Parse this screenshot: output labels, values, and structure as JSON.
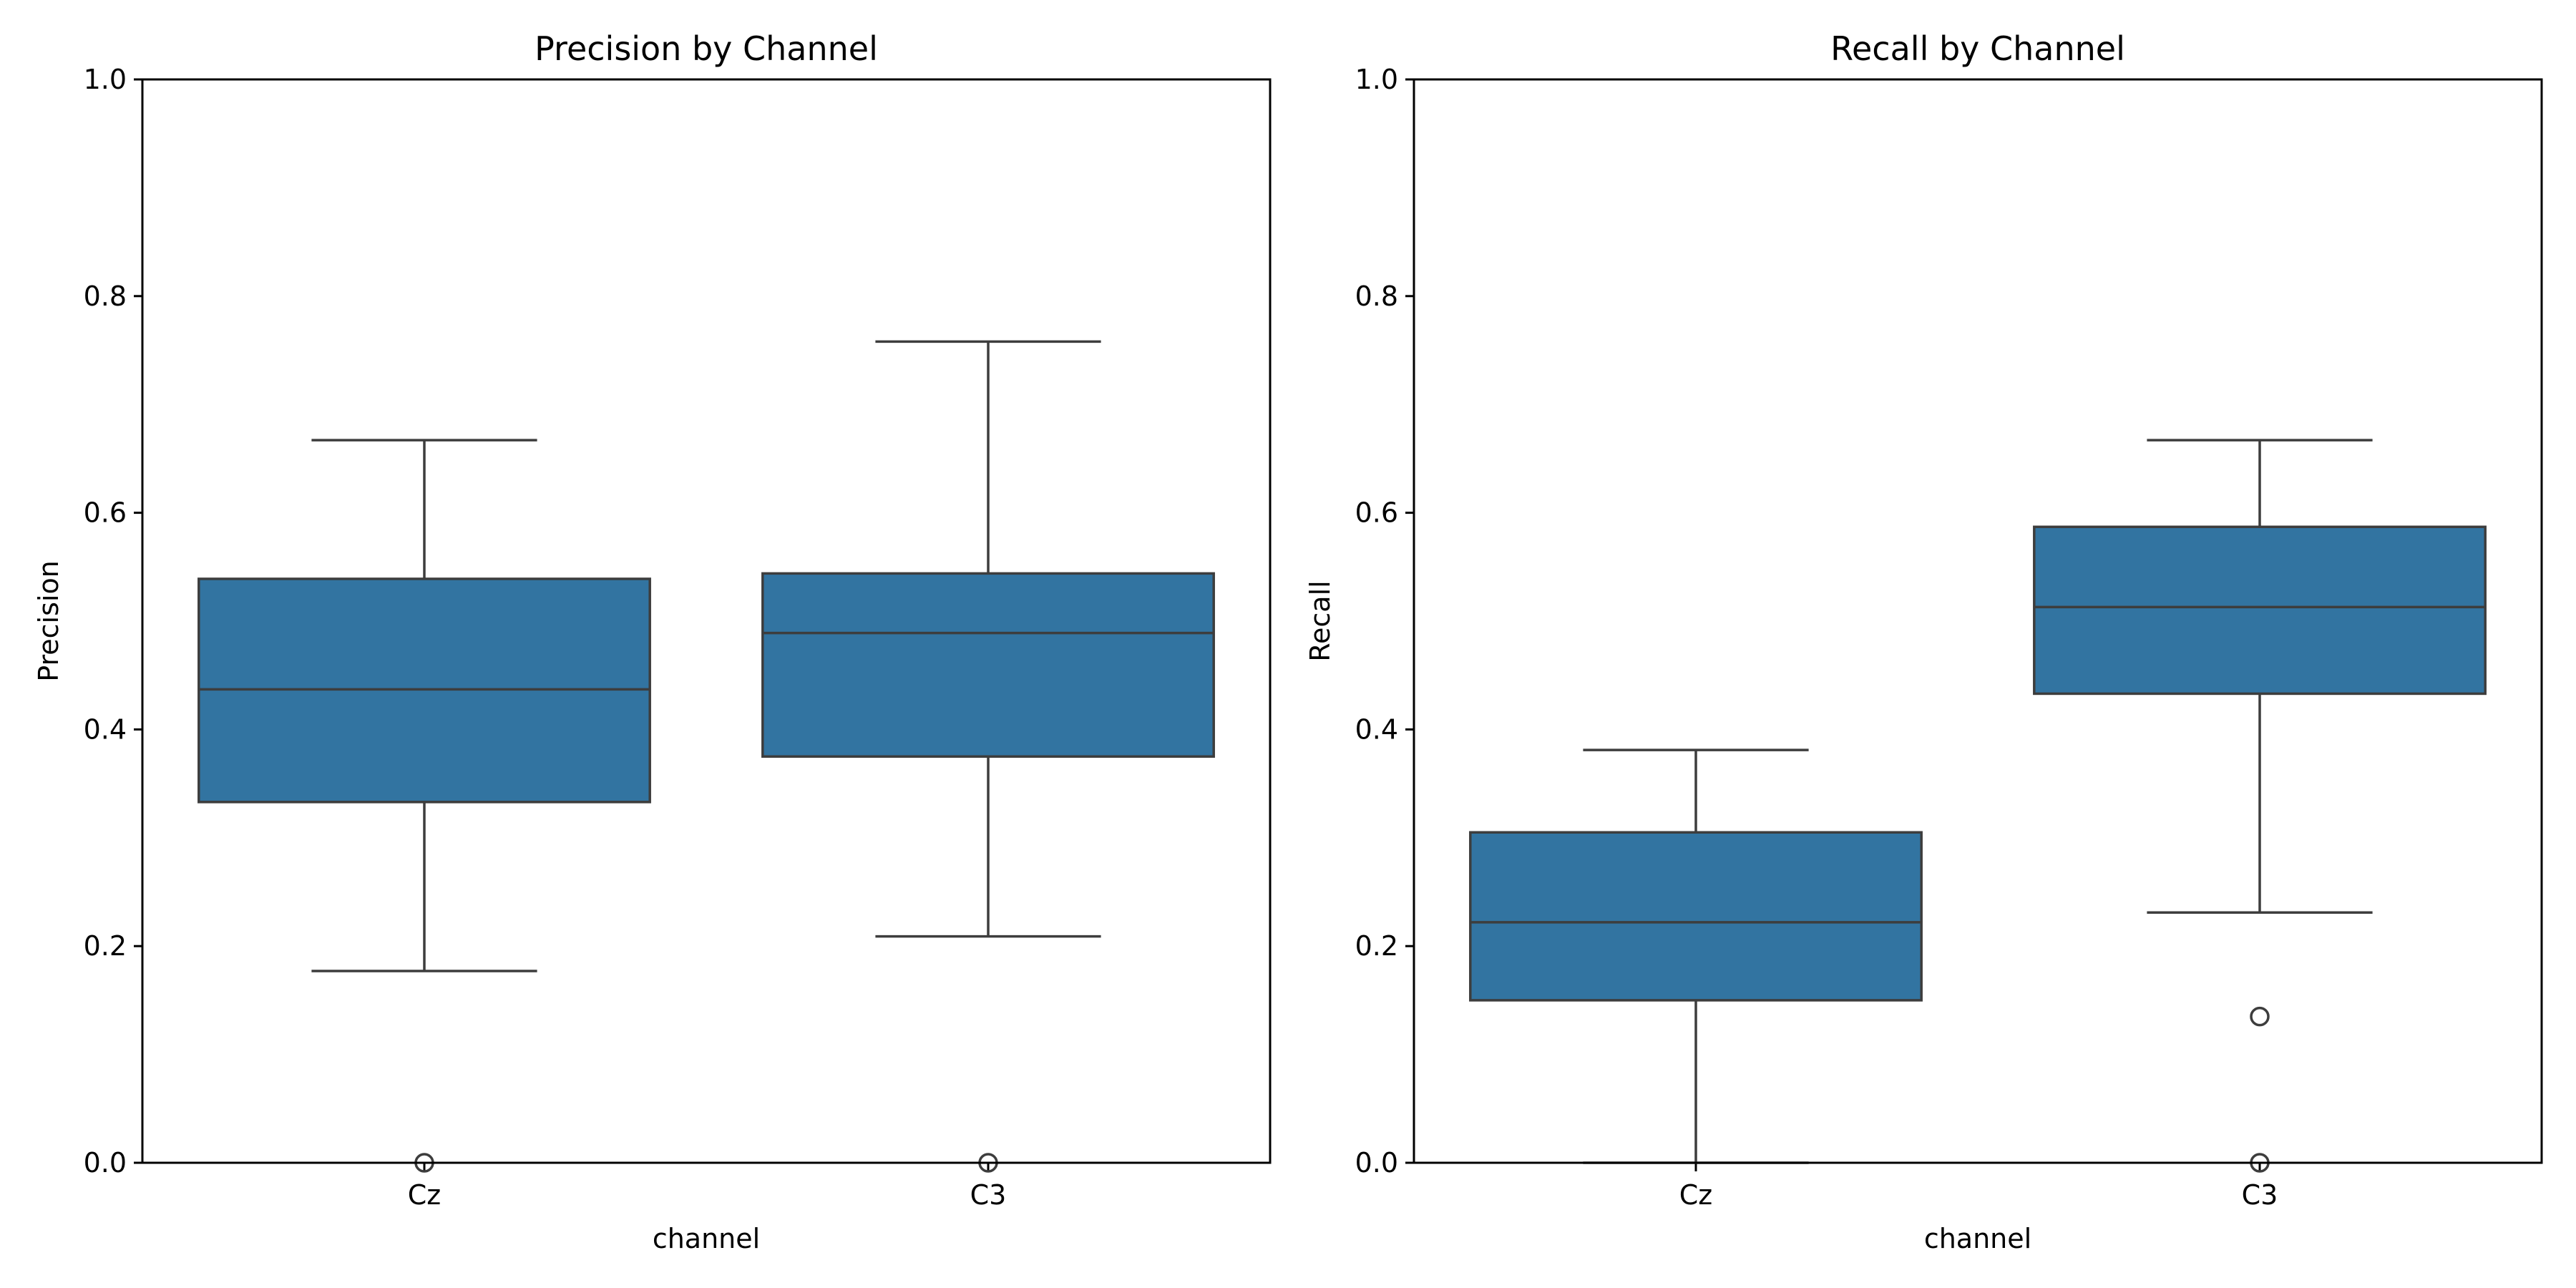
{
  "chart_data": [
    {
      "type": "box",
      "title": "Precision by Channel",
      "xlabel": "channel",
      "ylabel": "Precision",
      "ylim": [
        0,
        1
      ],
      "yticks": [
        "0.0",
        "0.2",
        "0.4",
        "0.6",
        "0.8",
        "1.0"
      ],
      "categories": [
        "Cz",
        "C3"
      ],
      "color": "#3274a1",
      "edge_color": "#3d3d3d",
      "grid": false,
      "boxes": [
        {
          "category": "Cz",
          "whisker_low": 0.177,
          "q1": 0.333,
          "median": 0.437,
          "q3": 0.539,
          "whisker_high": 0.667,
          "outliers": [
            0.0
          ]
        },
        {
          "category": "C3",
          "whisker_low": 0.209,
          "q1": 0.375,
          "median": 0.489,
          "q3": 0.544,
          "whisker_high": 0.758,
          "outliers": [
            0.0
          ]
        }
      ]
    },
    {
      "type": "box",
      "title": "Recall by Channel",
      "xlabel": "channel",
      "ylabel": "Recall",
      "ylim": [
        0,
        1
      ],
      "yticks": [
        "0.0",
        "0.2",
        "0.4",
        "0.6",
        "0.8",
        "1.0"
      ],
      "categories": [
        "Cz",
        "C3"
      ],
      "color": "#3274a1",
      "edge_color": "#3d3d3d",
      "grid": false,
      "boxes": [
        {
          "category": "Cz",
          "whisker_low": 0.0,
          "q1": 0.15,
          "median": 0.222,
          "q3": 0.305,
          "whisker_high": 0.381,
          "outliers": []
        },
        {
          "category": "C3",
          "whisker_low": 0.231,
          "q1": 0.433,
          "median": 0.513,
          "q3": 0.587,
          "whisker_high": 0.667,
          "outliers": [
            0.135,
            0.0
          ]
        }
      ]
    }
  ]
}
